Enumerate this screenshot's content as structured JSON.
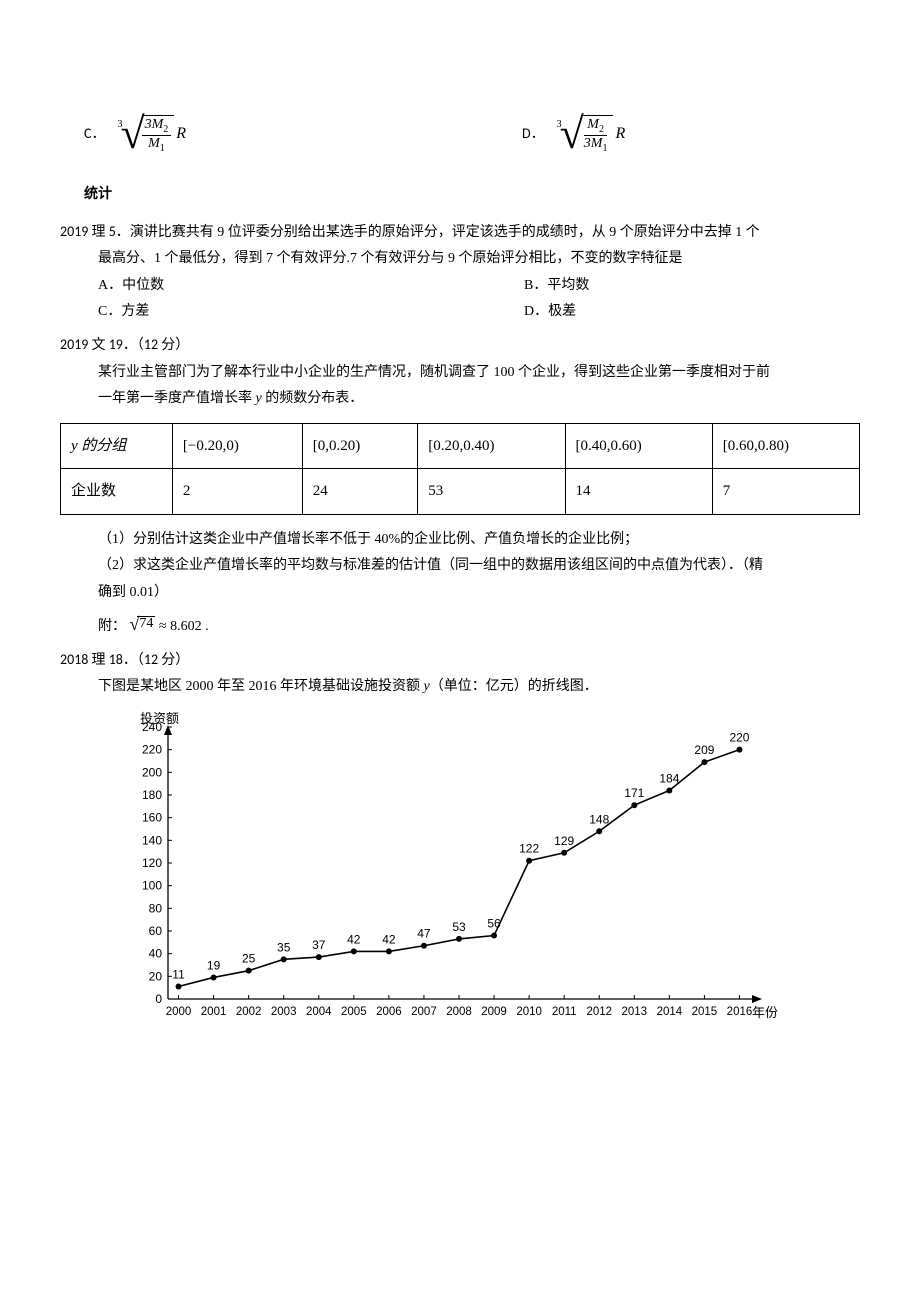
{
  "formulas": {
    "c": {
      "label": "C．",
      "index": "3",
      "numerator_coef": "3",
      "numerator_var": "M",
      "numerator_sub": "2",
      "denominator_var": "M",
      "denominator_sub": "1",
      "after": "R"
    },
    "d": {
      "label": "D．",
      "index": "3",
      "numerator_coef": "",
      "numerator_var": "M",
      "numerator_sub": "2",
      "denominator_coef": "3",
      "denominator_var": "M",
      "denominator_sub": "1",
      "after": "R"
    }
  },
  "heading": "统计",
  "q1": {
    "prefix": "2019 理 5．",
    "line1a": "演讲比赛共有 9 位评委分别给出某选手的原始评分，评定该选手的成绩时，从 9 个原始评分中去掉 1 个",
    "line2": "最高分、1 个最低分，得到 7 个有效评分.7 个有效评分与 9 个原始评分相比，不变的数字特征是",
    "options": {
      "a": "A．中位数",
      "b": "B．平均数",
      "c": "C．方差",
      "d": "D．极差"
    }
  },
  "q2": {
    "prefix": "2019 文 19．（12 分）",
    "line1": "某行业主管部门为了解本行业中小企业的生产情况，随机调查了 100 个企业，得到这些企业第一季度相对于前",
    "line2_a": "一年第一季度产值增长率 ",
    "line2_var": "y",
    "line2_b": " 的频数分布表．",
    "table": {
      "r1c1": "y 的分组",
      "intervals": [
        "[−0.20,0)",
        "[0,0.20)",
        "[0.20,0.40)",
        "[0.40,0.60)",
        "[0.60,0.80)"
      ],
      "r2c1": "企业数",
      "counts": [
        "2",
        "24",
        "53",
        "14",
        "7"
      ]
    },
    "sub1": "（1）分别估计这类企业中产值增长率不低于 40%的企业比例、产值负增长的企业比例；",
    "sub2": "（2）求这类企业产值增长率的平均数与标准差的估计值（同一组中的数据用该组区间的中点值为代表）．（精",
    "sub2b": "确到 0.01）",
    "appendix_a": "附：",
    "appendix_b": "74",
    "appendix_c": " ≈ 8.602 ."
  },
  "q3": {
    "prefix": "2018 理 18．（12 分）",
    "line1a": "下图是某地区 2000 年至 2016 年环境基础设施投资额 ",
    "line1var": "y",
    "line1b": "（单位：亿元）的折线图．",
    "chart": {
      "type": "line",
      "ylabel": "投资额",
      "xlabel": "年份",
      "years": [
        "2000",
        "2001",
        "2002",
        "2003",
        "2004",
        "2005",
        "2006",
        "2007",
        "2008",
        "2009",
        "2010",
        "2011",
        "2012",
        "2013",
        "2014",
        "2015",
        "2016"
      ],
      "values": [
        11,
        19,
        25,
        35,
        37,
        42,
        42,
        47,
        53,
        56,
        122,
        129,
        148,
        171,
        184,
        209,
        220
      ],
      "ymax": 240,
      "ystep": 20,
      "line_color": "#000000",
      "marker_color": "#000000",
      "marker_radius": 3,
      "line_width": 1.6,
      "font_size": 12
    }
  }
}
